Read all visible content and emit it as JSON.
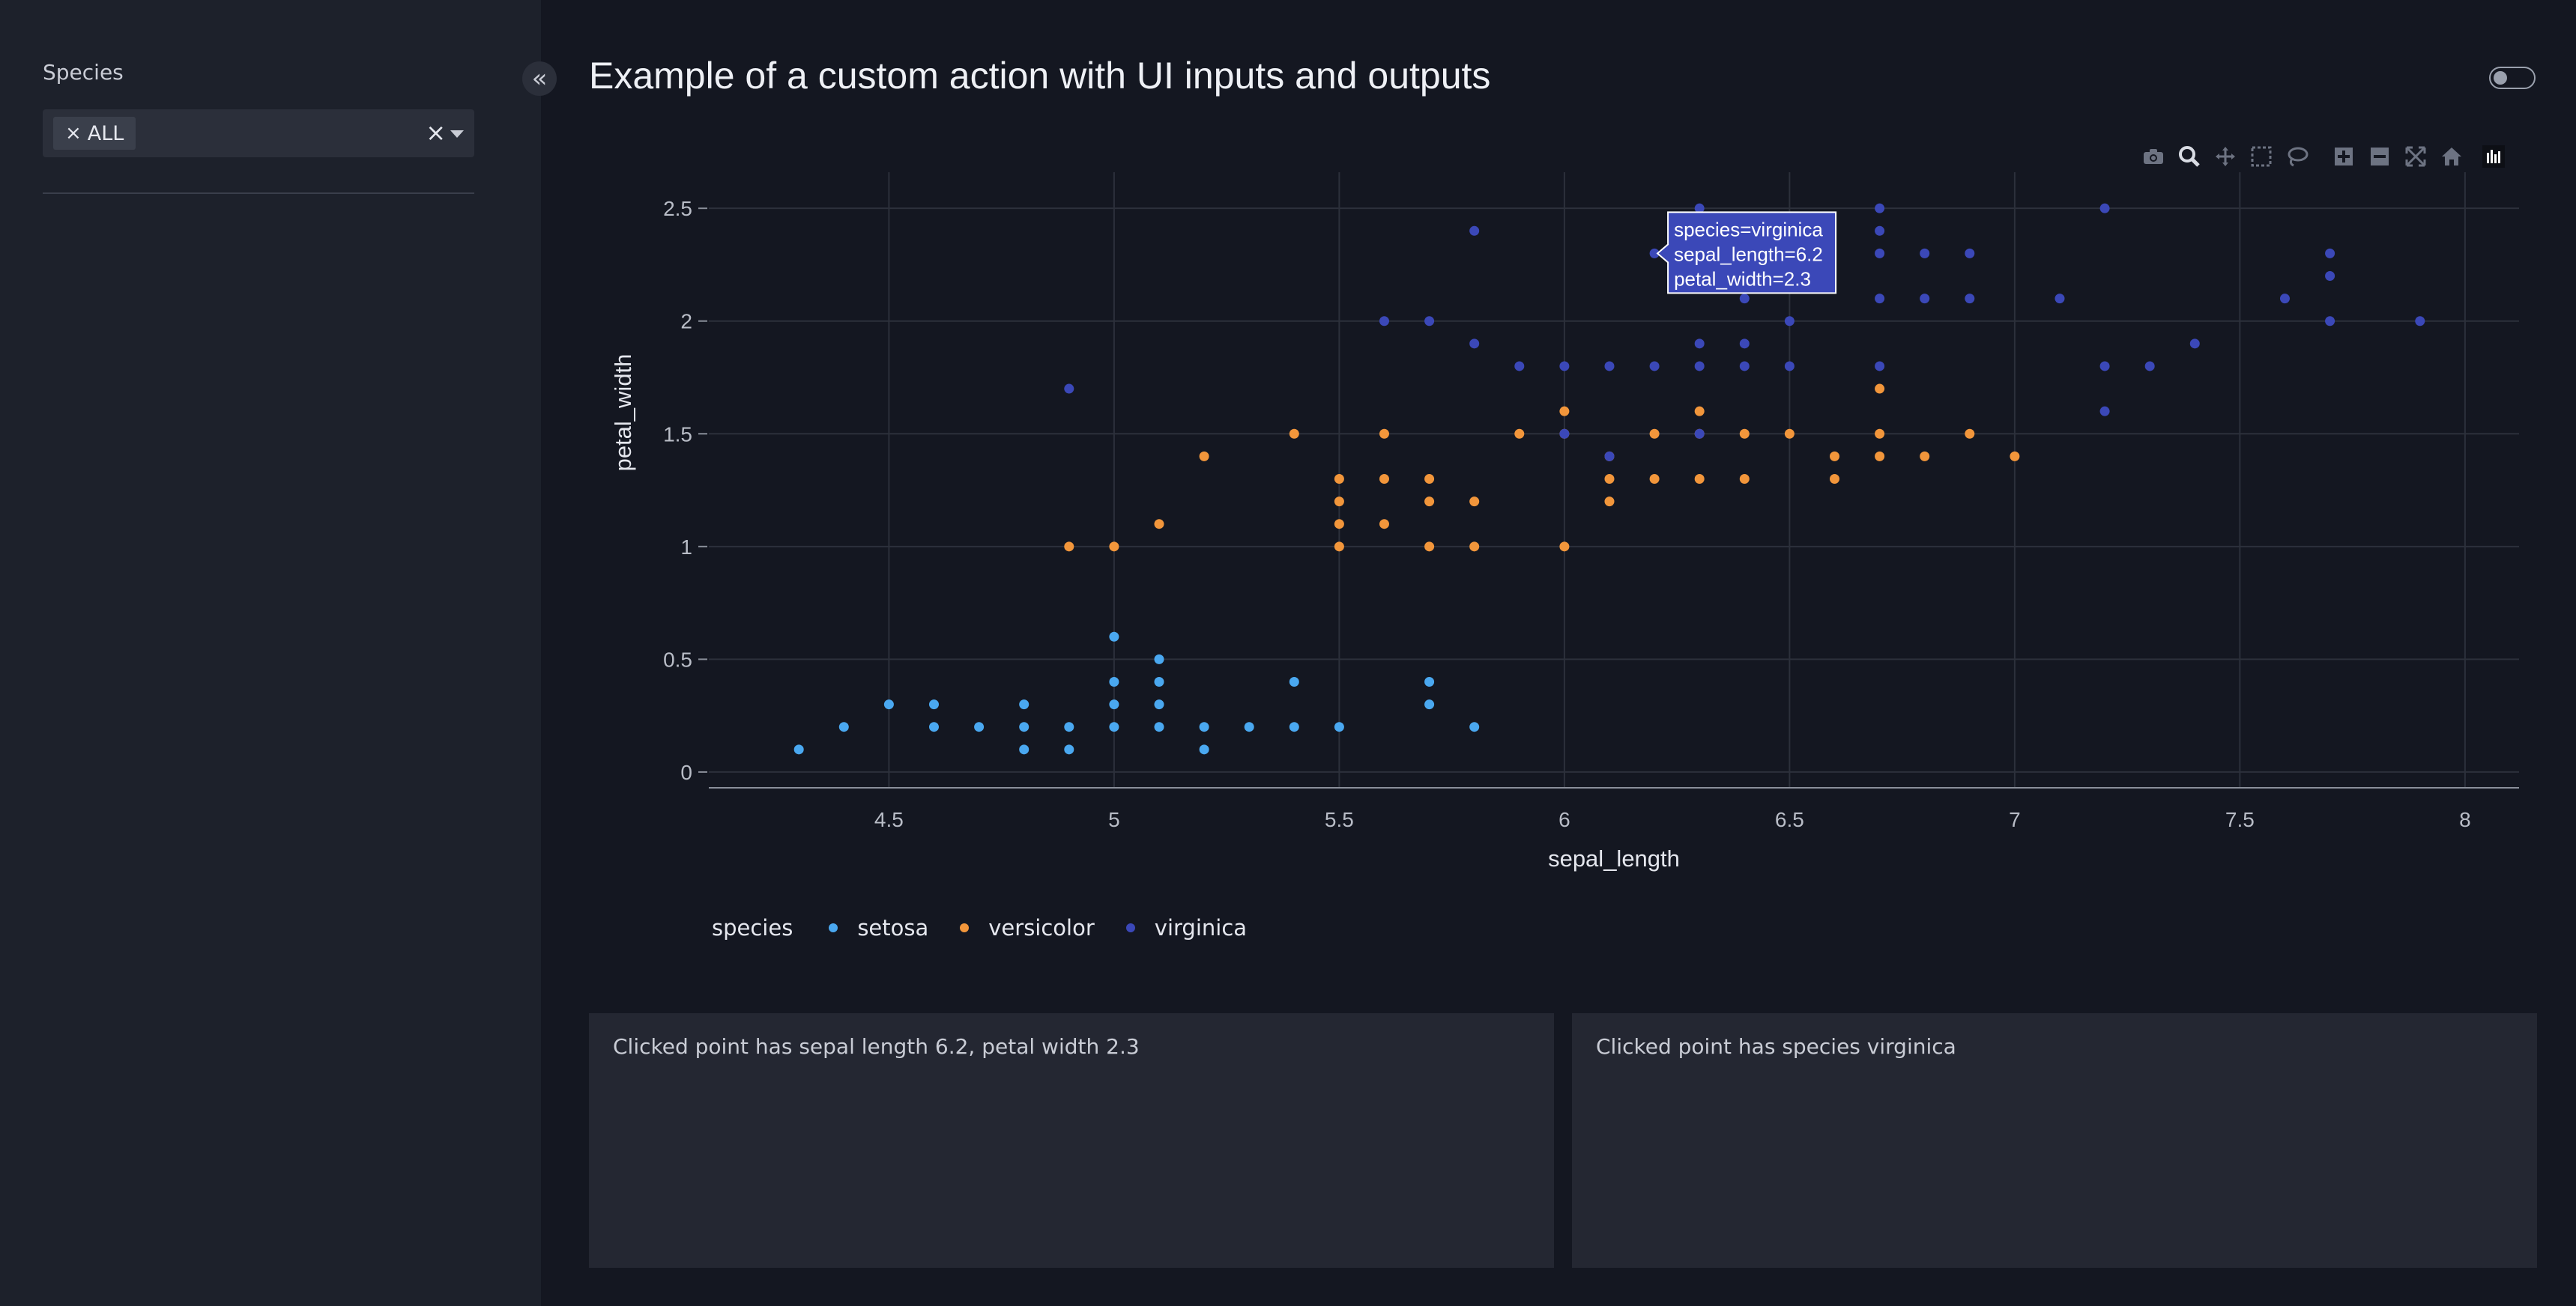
{
  "sidebar": {
    "filter_label": "Species",
    "selected_chip": "ALL"
  },
  "header": {
    "title": "Example of a custom action with UI inputs and outputs"
  },
  "colors": {
    "setosa": "#4aa8f0",
    "versicolor": "#f2963b",
    "virginica": "#3b48b8"
  },
  "tooltip": {
    "line1": "species=virginica",
    "line2": "sepal_length=6.2",
    "line3": "petal_width=2.3",
    "x": 6.2,
    "y": 2.3
  },
  "legend": {
    "title": "species",
    "items": [
      "setosa",
      "versicolor",
      "virginica"
    ]
  },
  "outputs": {
    "left_card": "Clicked point has sepal length 6.2, petal width 2.3",
    "right_card": "Clicked point has species virginica"
  },
  "chart_data": {
    "type": "scatter",
    "xlabel": "sepal_length",
    "ylabel": "petal_width",
    "xlim": [
      4.1,
      8.12
    ],
    "ylim": [
      -0.07,
      2.66
    ],
    "xticks": [
      4.5,
      5,
      5.5,
      6,
      6.5,
      7,
      7.5,
      8
    ],
    "yticks": [
      0,
      0.5,
      1,
      1.5,
      2,
      2.5
    ],
    "xtick_labels": [
      "4.5",
      "5",
      "5.5",
      "6",
      "6.5",
      "7",
      "7.5",
      "8"
    ],
    "ytick_labels": [
      "0",
      "0.5",
      "1",
      "1.5",
      "2",
      "2.5"
    ],
    "grid": true,
    "legend_position": "bottom-left",
    "series": [
      {
        "name": "setosa",
        "points": [
          [
            4.3,
            0.1
          ],
          [
            4.4,
            0.2
          ],
          [
            4.5,
            0.3
          ],
          [
            4.6,
            0.2
          ],
          [
            4.6,
            0.3
          ],
          [
            4.7,
            0.2
          ],
          [
            4.8,
            0.1
          ],
          [
            4.8,
            0.2
          ],
          [
            4.8,
            0.3
          ],
          [
            4.9,
            0.1
          ],
          [
            4.9,
            0.2
          ],
          [
            5.0,
            0.2
          ],
          [
            5.0,
            0.3
          ],
          [
            5.0,
            0.4
          ],
          [
            5.0,
            0.6
          ],
          [
            5.1,
            0.2
          ],
          [
            5.1,
            0.3
          ],
          [
            5.1,
            0.4
          ],
          [
            5.1,
            0.5
          ],
          [
            5.2,
            0.1
          ],
          [
            5.2,
            0.2
          ],
          [
            5.3,
            0.2
          ],
          [
            5.4,
            0.2
          ],
          [
            5.4,
            0.4
          ],
          [
            5.5,
            0.2
          ],
          [
            5.7,
            0.3
          ],
          [
            5.7,
            0.4
          ],
          [
            5.8,
            0.2
          ]
        ]
      },
      {
        "name": "versicolor",
        "points": [
          [
            4.9,
            1.0
          ],
          [
            5.0,
            1.0
          ],
          [
            5.1,
            1.1
          ],
          [
            5.2,
            1.4
          ],
          [
            5.4,
            1.5
          ],
          [
            5.5,
            1.0
          ],
          [
            5.5,
            1.1
          ],
          [
            5.5,
            1.2
          ],
          [
            5.5,
            1.3
          ],
          [
            5.6,
            1.1
          ],
          [
            5.6,
            1.3
          ],
          [
            5.6,
            1.5
          ],
          [
            5.7,
            1.0
          ],
          [
            5.7,
            1.2
          ],
          [
            5.7,
            1.3
          ],
          [
            5.8,
            1.0
          ],
          [
            5.8,
            1.2
          ],
          [
            5.9,
            1.5
          ],
          [
            6.0,
            1.0
          ],
          [
            6.0,
            1.5
          ],
          [
            6.0,
            1.6
          ],
          [
            6.1,
            1.2
          ],
          [
            6.1,
            1.3
          ],
          [
            6.1,
            1.4
          ],
          [
            6.2,
            1.3
          ],
          [
            6.2,
            1.5
          ],
          [
            6.3,
            1.3
          ],
          [
            6.3,
            1.5
          ],
          [
            6.3,
            1.6
          ],
          [
            6.4,
            1.3
          ],
          [
            6.4,
            1.5
          ],
          [
            6.5,
            1.5
          ],
          [
            6.6,
            1.3
          ],
          [
            6.6,
            1.4
          ],
          [
            6.7,
            1.4
          ],
          [
            6.7,
            1.5
          ],
          [
            6.7,
            1.7
          ],
          [
            6.8,
            1.4
          ],
          [
            6.9,
            1.5
          ],
          [
            7.0,
            1.4
          ]
        ]
      },
      {
        "name": "virginica",
        "points": [
          [
            4.9,
            1.7
          ],
          [
            5.6,
            2.0
          ],
          [
            5.7,
            2.0
          ],
          [
            5.8,
            1.9
          ],
          [
            5.8,
            2.4
          ],
          [
            5.9,
            1.8
          ],
          [
            6.0,
            1.5
          ],
          [
            6.0,
            1.8
          ],
          [
            6.1,
            1.4
          ],
          [
            6.1,
            1.8
          ],
          [
            6.2,
            1.8
          ],
          [
            6.2,
            2.3
          ],
          [
            6.3,
            1.5
          ],
          [
            6.3,
            1.8
          ],
          [
            6.3,
            1.9
          ],
          [
            6.3,
            2.5
          ],
          [
            6.4,
            1.8
          ],
          [
            6.4,
            1.9
          ],
          [
            6.4,
            2.1
          ],
          [
            6.4,
            2.3
          ],
          [
            6.5,
            1.8
          ],
          [
            6.5,
            2.0
          ],
          [
            6.7,
            1.8
          ],
          [
            6.7,
            2.1
          ],
          [
            6.7,
            2.3
          ],
          [
            6.7,
            2.4
          ],
          [
            6.7,
            2.5
          ],
          [
            6.8,
            2.1
          ],
          [
            6.8,
            2.3
          ],
          [
            6.9,
            2.1
          ],
          [
            6.9,
            2.3
          ],
          [
            7.1,
            2.1
          ],
          [
            7.2,
            1.6
          ],
          [
            7.2,
            1.8
          ],
          [
            7.2,
            2.5
          ],
          [
            7.3,
            1.8
          ],
          [
            7.4,
            1.9
          ],
          [
            7.6,
            2.1
          ],
          [
            7.7,
            2.0
          ],
          [
            7.7,
            2.2
          ],
          [
            7.7,
            2.3
          ],
          [
            7.9,
            2.0
          ]
        ]
      }
    ]
  }
}
